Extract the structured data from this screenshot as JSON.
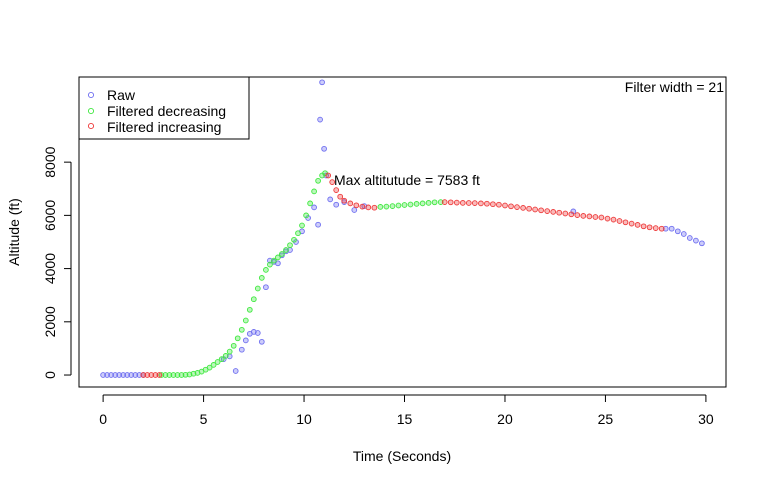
{
  "chart_data": {
    "type": "scatter",
    "title": "",
    "xlabel": "Time (Seconds)",
    "ylabel": "Altitude (ft)",
    "xlim": [
      -1.2,
      31.0
    ],
    "ylim": [
      -450,
      11200
    ],
    "x_ticks": [
      0,
      5,
      10,
      15,
      20,
      25,
      30
    ],
    "y_ticks": [
      0,
      2000,
      4000,
      6000,
      8000
    ],
    "grid": false,
    "legend_position": "top-left",
    "annotations": {
      "max_label": "Max altitutude = 7583 ft",
      "filter_label": "Filter width =  21"
    },
    "colors": {
      "raw": "#6f6ff0",
      "filtered_decreasing": "#3fe83f",
      "filtered_increasing": "#ee3b3b"
    },
    "series": [
      {
        "name": "Raw",
        "key": "raw",
        "points": [
          [
            0.0,
            0
          ],
          [
            0.2,
            0
          ],
          [
            0.4,
            0
          ],
          [
            0.6,
            0
          ],
          [
            0.8,
            0
          ],
          [
            1.0,
            0
          ],
          [
            1.2,
            0
          ],
          [
            1.4,
            0
          ],
          [
            1.6,
            0
          ],
          [
            1.8,
            0
          ],
          [
            2.0,
            0
          ],
          [
            6.0,
            600
          ],
          [
            6.3,
            700
          ],
          [
            6.6,
            150
          ],
          [
            6.9,
            950
          ],
          [
            7.1,
            1300
          ],
          [
            7.3,
            1550
          ],
          [
            7.5,
            1620
          ],
          [
            7.7,
            1580
          ],
          [
            7.9,
            1250
          ],
          [
            8.1,
            3300
          ],
          [
            8.3,
            4300
          ],
          [
            8.5,
            4250
          ],
          [
            8.7,
            4200
          ],
          [
            8.9,
            4500
          ],
          [
            9.1,
            4650
          ],
          [
            9.3,
            4700
          ],
          [
            9.6,
            5000
          ],
          [
            9.9,
            5400
          ],
          [
            10.2,
            5900
          ],
          [
            10.5,
            6300
          ],
          [
            10.7,
            5650
          ],
          [
            10.8,
            9600
          ],
          [
            10.9,
            11000
          ],
          [
            11.0,
            8500
          ],
          [
            11.1,
            7500
          ],
          [
            11.3,
            6600
          ],
          [
            11.6,
            6400
          ],
          [
            12.0,
            6500
          ],
          [
            12.5,
            6200
          ],
          [
            13.0,
            6350
          ],
          [
            23.4,
            6150
          ],
          [
            28.0,
            5500
          ],
          [
            28.3,
            5500
          ],
          [
            28.6,
            5400
          ],
          [
            28.9,
            5300
          ],
          [
            29.2,
            5150
          ],
          [
            29.5,
            5050
          ],
          [
            29.8,
            4950
          ]
        ]
      },
      {
        "name": "Filtered decreasing",
        "key": "filtered_decreasing",
        "points": [
          [
            2.9,
            0
          ],
          [
            3.1,
            0
          ],
          [
            3.3,
            0
          ],
          [
            3.5,
            0
          ],
          [
            3.7,
            0
          ],
          [
            3.9,
            0
          ],
          [
            4.1,
            10
          ],
          [
            4.3,
            20
          ],
          [
            4.5,
            50
          ],
          [
            4.7,
            80
          ],
          [
            4.9,
            130
          ],
          [
            5.1,
            200
          ],
          [
            5.3,
            280
          ],
          [
            5.5,
            380
          ],
          [
            5.7,
            490
          ],
          [
            5.9,
            600
          ],
          [
            6.1,
            720
          ],
          [
            6.3,
            880
          ],
          [
            6.5,
            1100
          ],
          [
            6.7,
            1380
          ],
          [
            6.9,
            1700
          ],
          [
            7.1,
            2050
          ],
          [
            7.3,
            2450
          ],
          [
            7.5,
            2850
          ],
          [
            7.7,
            3250
          ],
          [
            7.9,
            3650
          ],
          [
            8.1,
            3950
          ],
          [
            8.3,
            4150
          ],
          [
            8.5,
            4300
          ],
          [
            8.7,
            4420
          ],
          [
            8.9,
            4550
          ],
          [
            9.1,
            4700
          ],
          [
            9.3,
            4880
          ],
          [
            9.5,
            5080
          ],
          [
            9.7,
            5330
          ],
          [
            9.9,
            5620
          ],
          [
            10.1,
            6000
          ],
          [
            10.3,
            6450
          ],
          [
            10.5,
            6900
          ],
          [
            10.7,
            7300
          ],
          [
            10.9,
            7500
          ],
          [
            11.05,
            7583
          ],
          [
            13.8,
            6320
          ],
          [
            14.1,
            6330
          ],
          [
            14.4,
            6350
          ],
          [
            14.7,
            6370
          ],
          [
            15.0,
            6390
          ],
          [
            15.3,
            6410
          ],
          [
            15.6,
            6430
          ],
          [
            15.9,
            6450
          ],
          [
            16.2,
            6470
          ],
          [
            16.5,
            6490
          ],
          [
            16.8,
            6500
          ]
        ]
      },
      {
        "name": "Filtered increasing",
        "key": "filtered_increasing",
        "points": [
          [
            2.0,
            0
          ],
          [
            2.2,
            0
          ],
          [
            2.4,
            0
          ],
          [
            2.6,
            0
          ],
          [
            2.8,
            0
          ],
          [
            11.2,
            7500
          ],
          [
            11.4,
            7250
          ],
          [
            11.6,
            6950
          ],
          [
            11.8,
            6700
          ],
          [
            12.0,
            6550
          ],
          [
            12.3,
            6450
          ],
          [
            12.6,
            6380
          ],
          [
            12.9,
            6330
          ],
          [
            13.2,
            6300
          ],
          [
            13.5,
            6290
          ],
          [
            17.0,
            6500
          ],
          [
            17.3,
            6490
          ],
          [
            17.6,
            6480
          ],
          [
            17.9,
            6470
          ],
          [
            18.2,
            6465
          ],
          [
            18.5,
            6460
          ],
          [
            18.8,
            6450
          ],
          [
            19.1,
            6440
          ],
          [
            19.4,
            6420
          ],
          [
            19.7,
            6400
          ],
          [
            20.0,
            6370
          ],
          [
            20.3,
            6340
          ],
          [
            20.6,
            6310
          ],
          [
            20.9,
            6280
          ],
          [
            21.2,
            6250
          ],
          [
            21.5,
            6220
          ],
          [
            21.8,
            6190
          ],
          [
            22.1,
            6160
          ],
          [
            22.4,
            6130
          ],
          [
            22.7,
            6100
          ],
          [
            23.0,
            6070
          ],
          [
            23.3,
            6040
          ],
          [
            23.6,
            6010
          ],
          [
            23.9,
            5980
          ],
          [
            24.2,
            5960
          ],
          [
            24.5,
            5940
          ],
          [
            24.8,
            5920
          ],
          [
            25.1,
            5880
          ],
          [
            25.4,
            5840
          ],
          [
            25.7,
            5790
          ],
          [
            26.0,
            5740
          ],
          [
            26.3,
            5690
          ],
          [
            26.6,
            5640
          ],
          [
            26.9,
            5590
          ],
          [
            27.2,
            5550
          ],
          [
            27.5,
            5520
          ],
          [
            27.8,
            5500
          ]
        ]
      }
    ]
  }
}
